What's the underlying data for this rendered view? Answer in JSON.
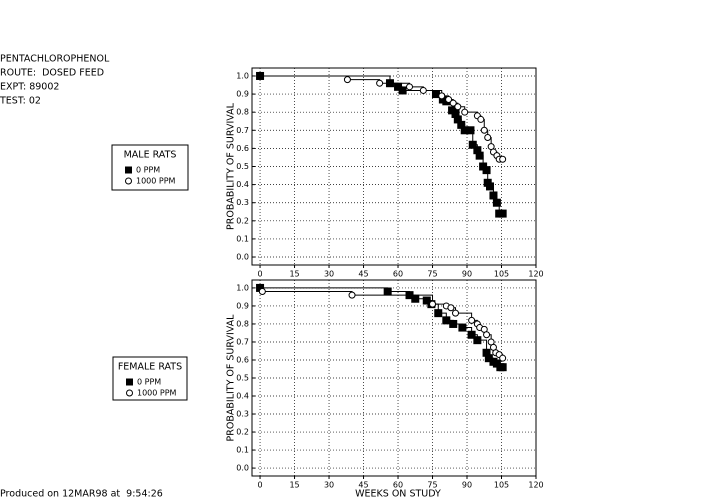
{
  "header": [
    "PENTACHLOROPHENOL",
    "ROUTE:  DOSED FEED",
    "EXPT: 89002",
    "TEST: 02"
  ],
  "footer": "Produced on 12MAR98 at  9:54:26",
  "chart_data": [
    {
      "type": "line",
      "legend_title": "MALE RATS",
      "ylabel": "PROBABILITY OF SURVIVAL",
      "xlim": [
        -3.5,
        120
      ],
      "ylim": [
        -0.044,
        1.044
      ],
      "grid": true,
      "xticks": [
        0,
        15,
        30,
        45,
        60,
        75,
        90,
        105,
        120
      ],
      "yticks": [
        {
          "value": 0,
          "label": "0.0"
        },
        0.1,
        0.2,
        0.3,
        0.4,
        0.5,
        0.6,
        0.7,
        0.8,
        0.9,
        {
          "value": 1,
          "label": "1.0"
        }
      ],
      "series": [
        {
          "name": "0 PPM",
          "color": "#000000",
          "marker": "square",
          "x": [
            0,
            56.5,
            60,
            62,
            76.5,
            79.5,
            81,
            83.5,
            85,
            86,
            87.5,
            89,
            91.5,
            92.5,
            94.5,
            95.5,
            97,
            98.5,
            99,
            100,
            101.5,
            103,
            104,
            105.5
          ],
          "values": [
            1.0,
            0.96,
            0.94,
            0.92,
            0.9,
            0.87,
            0.86,
            0.81,
            0.79,
            0.76,
            0.73,
            0.7,
            0.7,
            0.62,
            0.59,
            0.56,
            0.5,
            0.48,
            0.41,
            0.39,
            0.34,
            0.3,
            0.24,
            0.24
          ]
        },
        {
          "name": "1000 PPM",
          "color": "#000000",
          "marker": "circle",
          "x": [
            38,
            52,
            65,
            71,
            79,
            82,
            84,
            86,
            89,
            94.5,
            96,
            97.5,
            99,
            100.5,
            101.5,
            103,
            104,
            105.5
          ],
          "values": [
            0.98,
            0.96,
            0.94,
            0.92,
            0.89,
            0.87,
            0.85,
            0.83,
            0.8,
            0.78,
            0.76,
            0.7,
            0.66,
            0.61,
            0.58,
            0.56,
            0.54,
            0.54
          ]
        }
      ]
    },
    {
      "type": "line",
      "legend_title": "FEMALE RATS",
      "ylabel": "PROBABILITY OF SURVIVAL",
      "xlabel": "WEEKS ON STUDY",
      "xlim": [
        -3.5,
        120
      ],
      "ylim": [
        -0.044,
        1.044
      ],
      "grid": true,
      "xticks": [
        0,
        15,
        30,
        45,
        60,
        75,
        90,
        105,
        120
      ],
      "yticks": [
        {
          "value": 0,
          "label": "0.0"
        },
        0.1,
        0.2,
        0.3,
        0.4,
        0.5,
        0.6,
        0.7,
        0.8,
        0.9,
        {
          "value": 1,
          "label": "1.0"
        }
      ],
      "series": [
        {
          "name": "0 PPM",
          "color": "#000000",
          "marker": "square",
          "x": [
            0,
            55.5,
            65,
            67.5,
            72.5,
            74.5,
            77.5,
            81,
            84,
            88,
            92,
            94.5,
            98.5,
            99.5,
            101.5,
            103,
            104.5,
            105.5
          ],
          "values": [
            1.0,
            0.98,
            0.96,
            0.94,
            0.93,
            0.91,
            0.86,
            0.82,
            0.8,
            0.78,
            0.74,
            0.71,
            0.64,
            0.61,
            0.59,
            0.58,
            0.56,
            0.56
          ]
        },
        {
          "name": "1000 PPM",
          "color": "#000000",
          "marker": "circle",
          "x": [
            1,
            40,
            75,
            81,
            83,
            85,
            92,
            94.5,
            95.5,
            97.5,
            98.5,
            100.5,
            101.5,
            102.5,
            104,
            105.5
          ],
          "values": [
            0.98,
            0.96,
            0.91,
            0.9,
            0.89,
            0.86,
            0.82,
            0.8,
            0.78,
            0.77,
            0.74,
            0.7,
            0.67,
            0.64,
            0.63,
            0.61
          ]
        }
      ]
    }
  ]
}
